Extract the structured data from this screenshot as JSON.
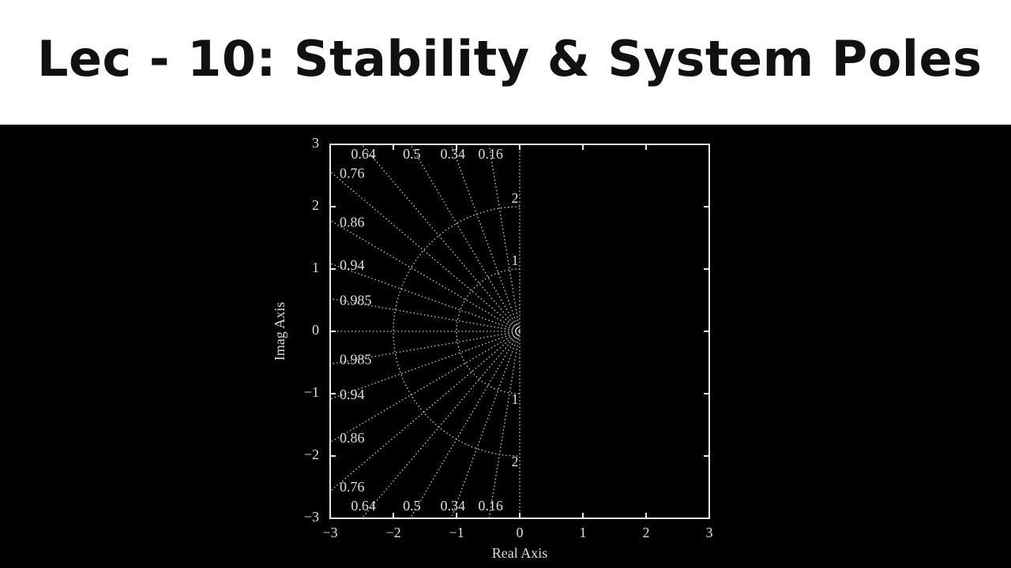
{
  "slide": {
    "title": "Lec - 10: Stability & System Poles"
  },
  "chart_data": {
    "type": "sgrid",
    "xlabel": "Real Axis",
    "ylabel": "Imag Axis",
    "xlim": [
      -3,
      3
    ],
    "ylim": [
      -3,
      3
    ],
    "xticks": [
      {
        "value": -3,
        "label": "−3"
      },
      {
        "value": -2,
        "label": "−2"
      },
      {
        "value": -1,
        "label": "−1"
      },
      0,
      1,
      2,
      3
    ],
    "yticks": [
      {
        "value": -3,
        "label": "−3"
      },
      {
        "value": -2,
        "label": "−2"
      },
      {
        "value": -1,
        "label": "−1"
      },
      0,
      1,
      2,
      3
    ],
    "damping": [
      0.16,
      0.34,
      0.5,
      0.64,
      0.76,
      0.86,
      0.94,
      0.985
    ],
    "natural_frequencies": [
      1,
      2
    ],
    "color": "#cfcfcf"
  }
}
